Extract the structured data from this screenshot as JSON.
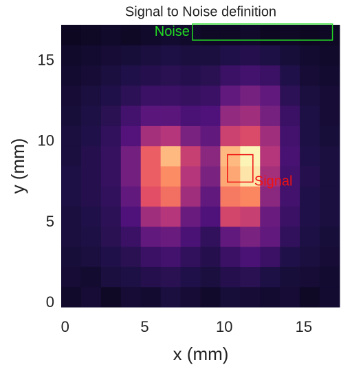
{
  "chart_data": {
    "type": "heatmap",
    "title": "Signal to Noise definition",
    "xlabel": "x (mm)",
    "ylabel": "y (mm)",
    "xlim": [
      -0.25,
      17.25
    ],
    "ylim": [
      -0.25,
      17.25
    ],
    "xticks": [
      0,
      5,
      10,
      15
    ],
    "yticks": [
      0,
      5,
      10,
      15
    ],
    "colormap": "magma",
    "z": [
      [
        0.08,
        0.1,
        0.07,
        0.1,
        0.09,
        0.12,
        0.1,
        0.08,
        0.11,
        0.1,
        0.09,
        0.1,
        0.07,
        0.09
      ],
      [
        0.1,
        0.09,
        0.12,
        0.13,
        0.15,
        0.16,
        0.14,
        0.12,
        0.15,
        0.16,
        0.13,
        0.11,
        0.1,
        0.09
      ],
      [
        0.11,
        0.12,
        0.14,
        0.16,
        0.2,
        0.22,
        0.18,
        0.15,
        0.2,
        0.24,
        0.2,
        0.14,
        0.12,
        0.1
      ],
      [
        0.12,
        0.13,
        0.16,
        0.2,
        0.3,
        0.32,
        0.24,
        0.18,
        0.3,
        0.36,
        0.3,
        0.18,
        0.13,
        0.11
      ],
      [
        0.12,
        0.14,
        0.17,
        0.25,
        0.45,
        0.5,
        0.32,
        0.25,
        0.58,
        0.55,
        0.32,
        0.2,
        0.14,
        0.12
      ],
      [
        0.13,
        0.15,
        0.18,
        0.3,
        0.62,
        0.7,
        0.45,
        0.3,
        0.72,
        0.75,
        0.4,
        0.22,
        0.14,
        0.12
      ],
      [
        0.13,
        0.15,
        0.19,
        0.34,
        0.66,
        0.76,
        0.5,
        0.36,
        0.82,
        0.95,
        0.46,
        0.22,
        0.15,
        0.12
      ],
      [
        0.12,
        0.15,
        0.19,
        0.34,
        0.66,
        0.86,
        0.55,
        0.4,
        0.86,
        0.98,
        0.5,
        0.23,
        0.14,
        0.12
      ],
      [
        0.12,
        0.14,
        0.18,
        0.26,
        0.46,
        0.5,
        0.36,
        0.3,
        0.56,
        0.6,
        0.45,
        0.22,
        0.13,
        0.11
      ],
      [
        0.11,
        0.13,
        0.16,
        0.22,
        0.28,
        0.28,
        0.24,
        0.25,
        0.42,
        0.45,
        0.35,
        0.2,
        0.13,
        0.1
      ],
      [
        0.1,
        0.12,
        0.14,
        0.17,
        0.2,
        0.2,
        0.19,
        0.2,
        0.3,
        0.35,
        0.3,
        0.17,
        0.12,
        0.1
      ],
      [
        0.09,
        0.1,
        0.12,
        0.14,
        0.15,
        0.16,
        0.15,
        0.16,
        0.2,
        0.22,
        0.2,
        0.14,
        0.1,
        0.09
      ],
      [
        0.08,
        0.09,
        0.1,
        0.11,
        0.12,
        0.13,
        0.12,
        0.12,
        0.14,
        0.15,
        0.13,
        0.11,
        0.09,
        0.08
      ],
      [
        0.06,
        0.07,
        0.08,
        0.07,
        0.08,
        0.09,
        0.08,
        0.07,
        0.07,
        0.08,
        0.06,
        0.07,
        0.06,
        0.07
      ]
    ],
    "annotations": [
      {
        "text": "Noise",
        "color": "#22dd22",
        "x": [
          8,
          16.8
        ],
        "y": [
          16.3,
          17.3
        ],
        "side": "left"
      },
      {
        "text": "Signal",
        "color": "#ee1111",
        "x": [
          10.2,
          11.8
        ],
        "y": [
          7.5,
          9.2
        ],
        "side": "right"
      }
    ]
  }
}
